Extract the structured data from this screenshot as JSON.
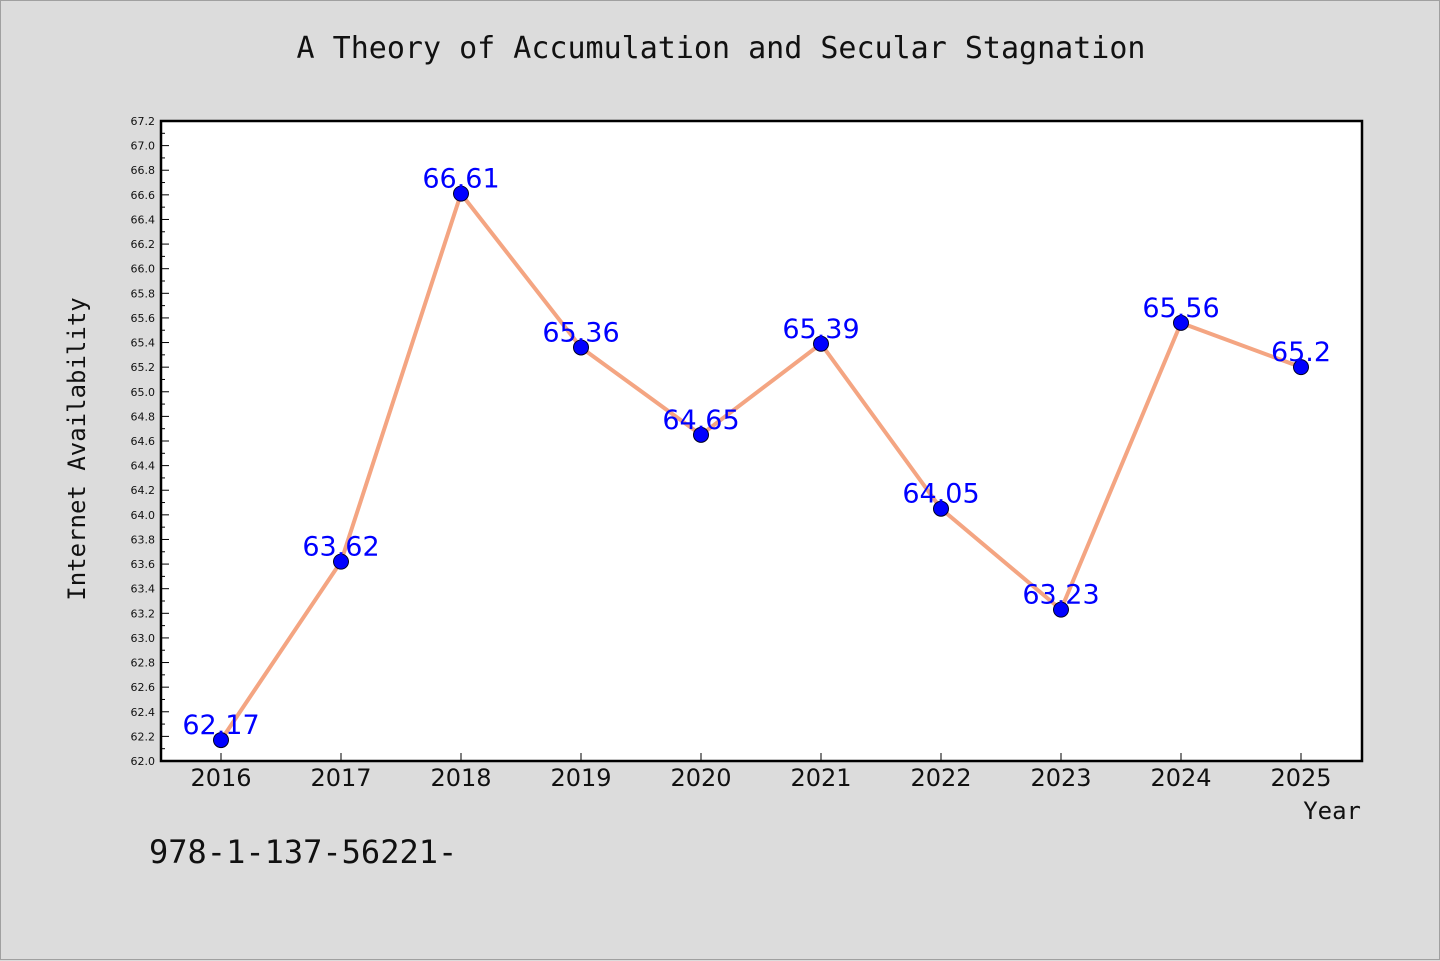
{
  "chart_data": {
    "type": "line",
    "title": "A Theory of Accumulation and Secular Stagnation",
    "xlabel": "Year",
    "ylabel": "Internet Availability",
    "categories": [
      "2016",
      "2017",
      "2018",
      "2019",
      "2020",
      "2021",
      "2022",
      "2023",
      "2024",
      "2025"
    ],
    "series": [
      {
        "values": [
          62.17,
          63.62,
          66.61,
          65.36,
          64.65,
          65.39,
          64.05,
          63.23,
          65.56,
          65.2
        ],
        "data_labels": [
          "62.17",
          "63.62",
          "66.61",
          "65.36",
          "64.65",
          "65.39",
          "64.05",
          "63.23",
          "65.56",
          "65.2"
        ]
      }
    ],
    "ylim": [
      62.0,
      67.2
    ],
    "yticks": [
      "62.0",
      "62.2",
      "62.4",
      "62.6",
      "62.8",
      "63.0",
      "63.2",
      "63.4",
      "63.6",
      "63.8",
      "64.0",
      "64.2",
      "64.4",
      "64.6",
      "64.8",
      "65.0",
      "65.2",
      "65.4",
      "65.6",
      "65.8",
      "66.0",
      "66.2",
      "66.4",
      "66.6",
      "66.8",
      "67.0",
      "67.2"
    ],
    "grid": false,
    "legend": "none",
    "colors": {
      "line": "#f4a582",
      "marker": "#0000ff",
      "data_label": "#0000ff",
      "plot_background": "#ffffff",
      "figure_background": "#dcdcdc"
    }
  },
  "footnote": "978-1-137-56221-"
}
